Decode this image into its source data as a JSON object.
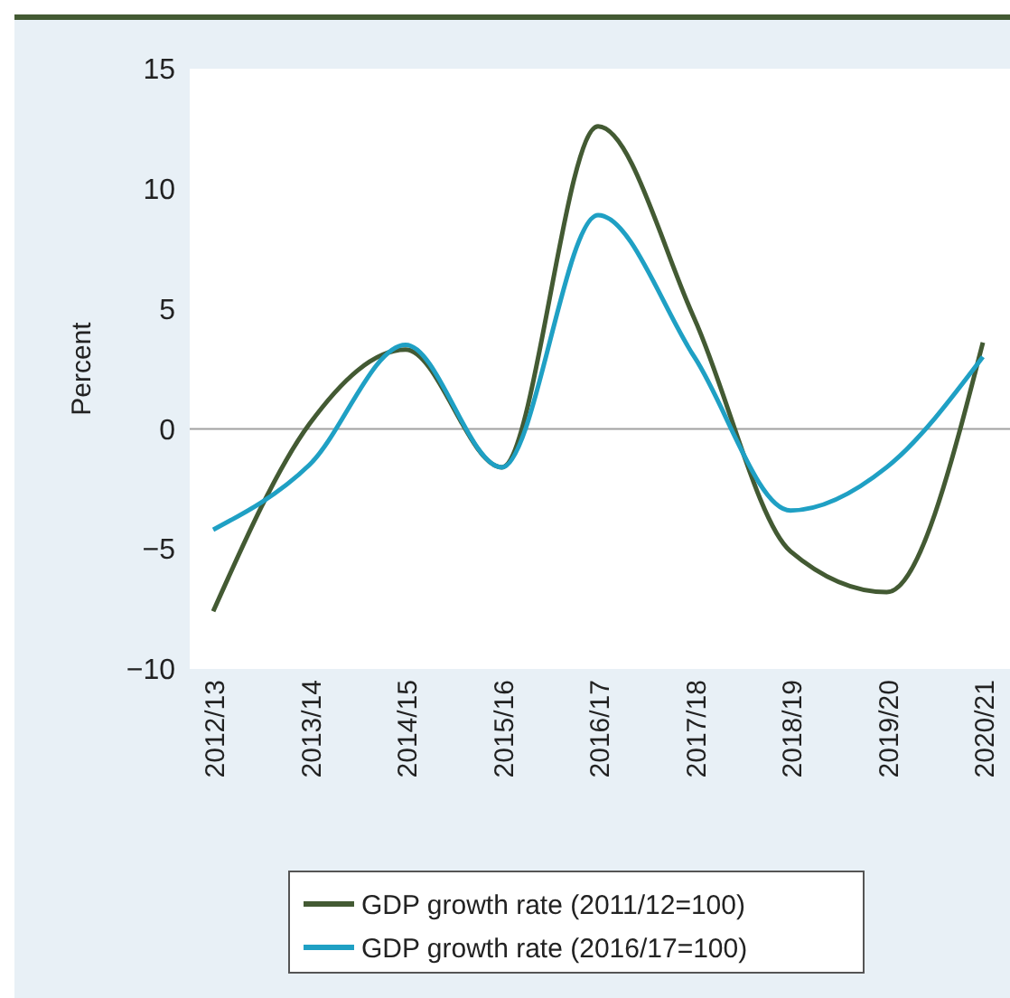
{
  "chart_data": {
    "type": "line",
    "ylabel": "Percent",
    "categories": [
      "2012/13",
      "2013/14",
      "2014/15",
      "2015/16",
      "2016/17",
      "2017/18",
      "2018/19",
      "2019/20",
      "2020/21"
    ],
    "series": [
      {
        "name": "GDP growth rate (2011/12=100)",
        "color": "#435a33",
        "values": [
          -7.6,
          0.2,
          3.3,
          -1.6,
          12.6,
          4.6,
          -5.1,
          -6.8,
          3.6
        ]
      },
      {
        "name": "GDP growth rate (2016/17=100)",
        "color": "#1fa0c4",
        "values": [
          -4.2,
          -1.5,
          3.5,
          -1.6,
          8.9,
          3.0,
          -3.4,
          -1.6,
          3.0
        ]
      }
    ],
    "ylim": [
      -10,
      15
    ],
    "yticks": [
      {
        "value": -10,
        "label": "−10"
      },
      {
        "value": -5,
        "label": "−5"
      },
      0,
      5,
      10,
      15
    ],
    "ref_lines": [
      {
        "axis": "y",
        "value": 0,
        "color": "#a0a0a0"
      }
    ],
    "grid": false,
    "legend": "bottom",
    "line_style": "solid",
    "marker": "none"
  }
}
